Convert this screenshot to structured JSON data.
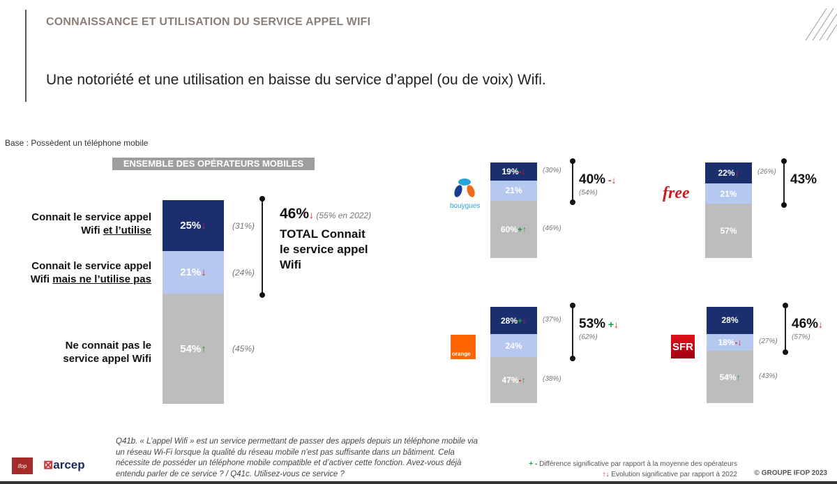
{
  "header": {
    "title": "CONNAISSANCE ET UTILISATION DU SERVICE APPEL WIFI",
    "subtitle": "Une notoriété et une utilisation en baisse du service d’appel (ou de voix) Wifi."
  },
  "base": "Base : Possèdent un téléphone mobile",
  "chart_data": {
    "type": "bar",
    "stacked": true,
    "title": "ENSEMBLE DES OPÉRATEURS MOBILES",
    "categories": [
      "Connait le service appel Wifi et l’utilise",
      "Connait le service appel Wifi mais ne l’utilise pas",
      "Ne connait pas le service appel Wifi"
    ],
    "row_labels": [
      {
        "main": "Connait le service appel Wifi",
        "underlined": "et l’utilise"
      },
      {
        "main": "Connait le service appel Wifi",
        "underlined": "mais ne l’utilise pas"
      },
      {
        "main": "Ne connait pas le service appel Wifi",
        "underlined": ""
      }
    ],
    "colors": [
      "#1b2f6e",
      "#b4c8f0",
      "#bdbdbd"
    ],
    "overall": {
      "name": "Ensemble",
      "segments": [
        {
          "value": 25,
          "label": "25%",
          "sig": "",
          "trend": "down",
          "prev": "(31%)"
        },
        {
          "value": 21,
          "label": "21%",
          "sig": "",
          "trend": "down",
          "prev": "(24%)"
        },
        {
          "value": 54,
          "label": "54%",
          "sig": "",
          "trend": "up",
          "prev": "(45%)"
        }
      ],
      "total": {
        "value": 46,
        "label": "46%",
        "sig": "",
        "trend": "down",
        "prev": "(55% en 2022)",
        "text": "TOTAL Connait le service appel Wifi"
      }
    },
    "operators": [
      {
        "name": "bouygues",
        "segments": [
          {
            "value": 19,
            "label": "19%",
            "sig": "-",
            "trend": "down",
            "prev": "(30%)"
          },
          {
            "value": 21,
            "label": "21%",
            "sig": "",
            "trend": "",
            "prev": ""
          },
          {
            "value": 60,
            "label": "60%",
            "sig": "+",
            "trend": "up",
            "prev": "(46%)"
          }
        ],
        "total": {
          "value": 40,
          "label": "40%",
          "sig": "-",
          "trend": "down",
          "prev": "(54%)"
        }
      },
      {
        "name": "free",
        "segments": [
          {
            "value": 22,
            "label": "22%",
            "sig": "",
            "trend": "down",
            "prev": "(26%)"
          },
          {
            "value": 21,
            "label": "21%",
            "sig": "",
            "trend": "",
            "prev": ""
          },
          {
            "value": 57,
            "label": "57%",
            "sig": "",
            "trend": "",
            "prev": ""
          }
        ],
        "total": {
          "value": 43,
          "label": "43%",
          "sig": "",
          "trend": "",
          "prev": ""
        }
      },
      {
        "name": "orange",
        "segments": [
          {
            "value": 28,
            "label": "28%",
            "sig": "+",
            "trend": "down",
            "prev": "(37%)"
          },
          {
            "value": 24,
            "label": "24%",
            "sig": "",
            "trend": "",
            "prev": ""
          },
          {
            "value": 47,
            "label": "47%",
            "sig": "-",
            "trend": "up",
            "prev": "(38%)"
          }
        ],
        "total": {
          "value": 53,
          "label": "53%",
          "sig": "+",
          "trend": "down",
          "prev": "(62%)"
        }
      },
      {
        "name": "SFR",
        "segments": [
          {
            "value": 28,
            "label": "28%",
            "sig": "",
            "trend": "",
            "prev": ""
          },
          {
            "value": 18,
            "label": "18%",
            "sig": "-",
            "trend": "down",
            "prev": "(27%)"
          },
          {
            "value": 54,
            "label": "54%",
            "sig": "",
            "trend": "up",
            "prev": "(43%)"
          }
        ],
        "total": {
          "value": 46,
          "label": "46%",
          "sig": "",
          "trend": "down",
          "prev": "(57%)"
        }
      }
    ]
  },
  "logos": {
    "bouygues": "bouygues",
    "free": "free",
    "orange": "orange",
    "sfr": "SFR",
    "ifop": "ifop",
    "arcep": "arcep"
  },
  "footer": {
    "question": "Q41b. « L’appel Wifi » est un service permettant de passer des appels depuis un téléphone mobile via un réseau Wi-Fi lorsque la qualité du réseau mobile n’est pas suffisante dans un bâtiment. Cela nécessite de posséder un téléphone mobile compatible et d’activer cette fonction. Avez-vous déjà entendu parler de ce service ? /  Q41c. Utilisez-vous ce service ?",
    "legend_sig_symbols": "+ -",
    "legend_sig": "Différence significative par rapport à la moyenne des opérateurs",
    "legend_evo_symbols": "↑↓",
    "legend_evo": "Evolution significative par rapport à 2022",
    "copyright": "© GROUPE IFOP 2023"
  }
}
